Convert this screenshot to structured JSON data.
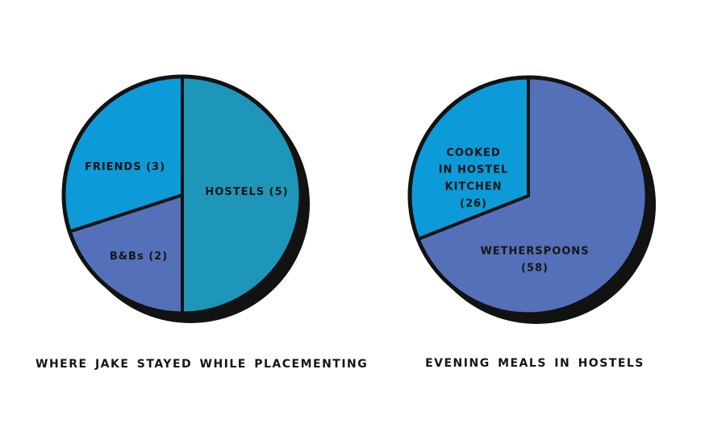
{
  "page": {
    "background": "#ffffff",
    "ink": "#151515"
  },
  "chart_data": [
    {
      "type": "pie",
      "title": "WHERE JAKE STAYED WHILE PLACEMENTING",
      "total": 10,
      "direction": "clockwise",
      "start_angle_deg": 0,
      "legend_position": "labels-inside-slices",
      "outline_color": "#121212",
      "shadow_color": "#121212",
      "shadow_offset": [
        10,
        11
      ],
      "slices": [
        {
          "name": "hostels",
          "label": "HOSTELS (5)",
          "label_lines": [
            "HOSTELS (5)"
          ],
          "value": 5,
          "color": "#1e96ba",
          "label_pos": [
            230,
            145
          ]
        },
        {
          "name": "b-and-bs",
          "label": "B&Bs (2)",
          "label_lines": [
            "B&Bs (2)"
          ],
          "value": 2,
          "color": "#5470b8",
          "label_pos": [
            96,
            225
          ]
        },
        {
          "name": "friends",
          "label": "FRIENDS (3)",
          "label_lines": [
            "FRIENDS (3)"
          ],
          "value": 3,
          "color": "#0d9ad8",
          "label_pos": [
            79,
            114
          ]
        }
      ]
    },
    {
      "type": "pie",
      "title": "EVENING MEALS IN HOSTELS",
      "total": 84,
      "direction": "clockwise",
      "start_angle_deg": 0,
      "legend_position": "labels-inside-slices",
      "outline_color": "#121212",
      "shadow_color": "#121212",
      "shadow_offset": [
        10,
        11
      ],
      "slices": [
        {
          "name": "wetherspoons",
          "label": "WETHERSPOONS (58)",
          "label_lines": [
            "WETHERSPOONS",
            "(58)"
          ],
          "value": 58,
          "color": "#5470b8",
          "label_pos": [
            158,
            228
          ]
        },
        {
          "name": "cooked-in-hostel-kitchen",
          "label": "COOKED IN HOSTEL KITCHEN (26)",
          "label_lines": [
            "COOKED",
            "IN HOSTEL",
            "KITCHEN",
            "(26)"
          ],
          "value": 26,
          "color": "#0d9ad8",
          "label_pos": [
            82,
            127
          ]
        }
      ]
    }
  ]
}
